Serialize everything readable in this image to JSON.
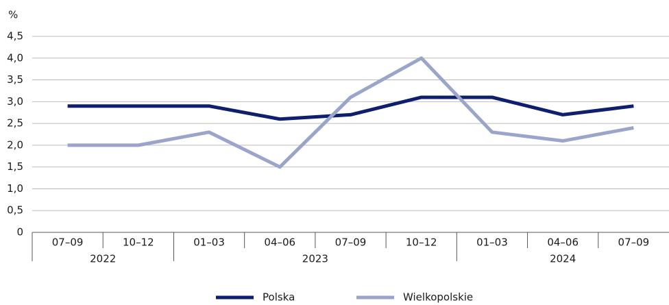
{
  "chart_data": {
    "type": "line",
    "y_unit": "%",
    "groups": [
      {
        "label": "2022",
        "categories": [
          "07–09",
          "10–12"
        ]
      },
      {
        "label": "2023",
        "categories": [
          "01–03",
          "04–06",
          "07–09",
          "10–12"
        ]
      },
      {
        "label": "2024",
        "categories": [
          "01–03",
          "04–06",
          "07–09"
        ]
      }
    ],
    "series": [
      {
        "name": "Polska",
        "color": "#0d1f6e",
        "values": [
          2.9,
          2.9,
          2.9,
          2.6,
          2.7,
          3.1,
          3.1,
          2.7,
          2.9
        ]
      },
      {
        "name": "Wielkopolskie",
        "color": "#9aa5c9",
        "values": [
          2.0,
          2.0,
          2.3,
          1.5,
          3.1,
          4.0,
          2.3,
          2.1,
          2.4
        ]
      }
    ],
    "ylim": [
      0,
      4.5
    ],
    "yticks": [
      0,
      {
        "value": 0.5,
        "label": "0,5"
      },
      {
        "value": 1,
        "label": "1,0"
      },
      {
        "value": 1.5,
        "label": "1,5"
      },
      {
        "value": 2,
        "label": "2,0"
      },
      {
        "value": 2.5,
        "label": "2,5"
      },
      {
        "value": 3,
        "label": "3,0"
      },
      {
        "value": 3.5,
        "label": "3,5"
      },
      {
        "value": 4,
        "label": "4,0"
      },
      {
        "value": 4.5,
        "label": "4,5"
      }
    ],
    "grid": true,
    "legend": "bottom"
  }
}
